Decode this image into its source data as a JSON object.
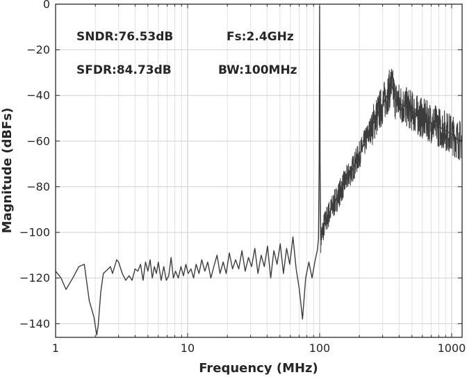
{
  "chart_data": {
    "type": "line",
    "title": "",
    "xlabel": "Frequency (MHz)",
    "ylabel": "Magnitude (dBFs)",
    "xscale": "log",
    "xlim": [
      1,
      1200
    ],
    "ylim": [
      -146,
      0
    ],
    "xticks": [
      1,
      10,
      100,
      1000
    ],
    "xtick_labels": [
      "1",
      "10",
      "100",
      "1000"
    ],
    "yticks": [
      0,
      -20,
      -40,
      -60,
      -80,
      -100,
      -120,
      -140
    ],
    "ytick_labels": [
      "0",
      "−20",
      "−40",
      "−60",
      "−80",
      "−100",
      "−120",
      "−140"
    ],
    "grid": true,
    "annotations": [
      "SNDR:76.53dB",
      "Fs:2.4GHz",
      "SFDR:84.73dB",
      "BW:100MHz"
    ],
    "line_color": "#3c3c3c",
    "series": [
      {
        "x": [
          1,
          1.1,
          1.2,
          1.35,
          1.5,
          1.65,
          1.8,
          1.95,
          2.05,
          2.1,
          2.2,
          2.3,
          2.4,
          2.5,
          2.6,
          2.7,
          2.8,
          2.9,
          3.0,
          3.2,
          3.4,
          3.6,
          3.8,
          4.0,
          4.2,
          4.4,
          4.6,
          4.8,
          5.0,
          5.2,
          5.4,
          5.6,
          5.8,
          6.0,
          6.3,
          6.6,
          6.9,
          7.2,
          7.5,
          7.8,
          8.1,
          8.5,
          8.9,
          9.3,
          9.7,
          10.1,
          10.6,
          11.1,
          11.6,
          12.2,
          12.8,
          13.5,
          14.2,
          15.0,
          15.8,
          16.7,
          17.6,
          18.6,
          19.6,
          20.7,
          21.9,
          23.1,
          24.4,
          25.8,
          27.3,
          28.9,
          30.5,
          32.3,
          34.1,
          36.1,
          38.1,
          40.3,
          42.6,
          45.0,
          47.6,
          50.3,
          53.2,
          56.2,
          59.4,
          62.8,
          66.4,
          70.2,
          74.2,
          78.4,
          82.9,
          87.6,
          92.6,
          96.0,
          98.0,
          99.2,
          100.0,
          100.8,
          102.0,
          104.0,
          108.0,
          115.0,
          125.0,
          138.0,
          155.0,
          175.0,
          200.0,
          230.0,
          265.0,
          300.0,
          330.0,
          350.0,
          375.0,
          420.0,
          480.0,
          560.0,
          650.0,
          760.0,
          880.0,
          1000.0,
          1100.0,
          1200.0
        ],
        "y": [
          -117,
          -120,
          -125,
          -120,
          -115,
          -114,
          -130,
          -137,
          -145,
          -141,
          -126,
          -118,
          -117,
          -116,
          -115,
          -118,
          -115,
          -112,
          -113,
          -118,
          -121,
          -119,
          -121,
          -116,
          -117,
          -114,
          -121,
          -113,
          -117,
          -112,
          -120,
          -115,
          -118,
          -113,
          -121,
          -115,
          -121,
          -119,
          -111,
          -120,
          -117,
          -120,
          -115,
          -119,
          -114,
          -118,
          -116,
          -120,
          -114,
          -118,
          -112,
          -117,
          -113,
          -120,
          -115,
          -110,
          -118,
          -113,
          -118,
          -109,
          -116,
          -112,
          -116,
          -108,
          -117,
          -111,
          -115,
          -107,
          -118,
          -110,
          -115,
          -106,
          -120,
          -108,
          -114,
          -105,
          -118,
          -107,
          -114,
          -102,
          -116,
          -125,
          -138,
          -120,
          -113,
          -120,
          -112,
          -108,
          -103,
          -70,
          -1,
          -70,
          -103,
          -101,
          -97,
          -93,
          -89,
          -84,
          -78,
          -73,
          -66,
          -58,
          -50,
          -44,
          -39,
          -35,
          -42,
          -44,
          -46,
          -49,
          -51,
          -53,
          -55,
          -57,
          -59,
          -60
        ]
      }
    ]
  }
}
